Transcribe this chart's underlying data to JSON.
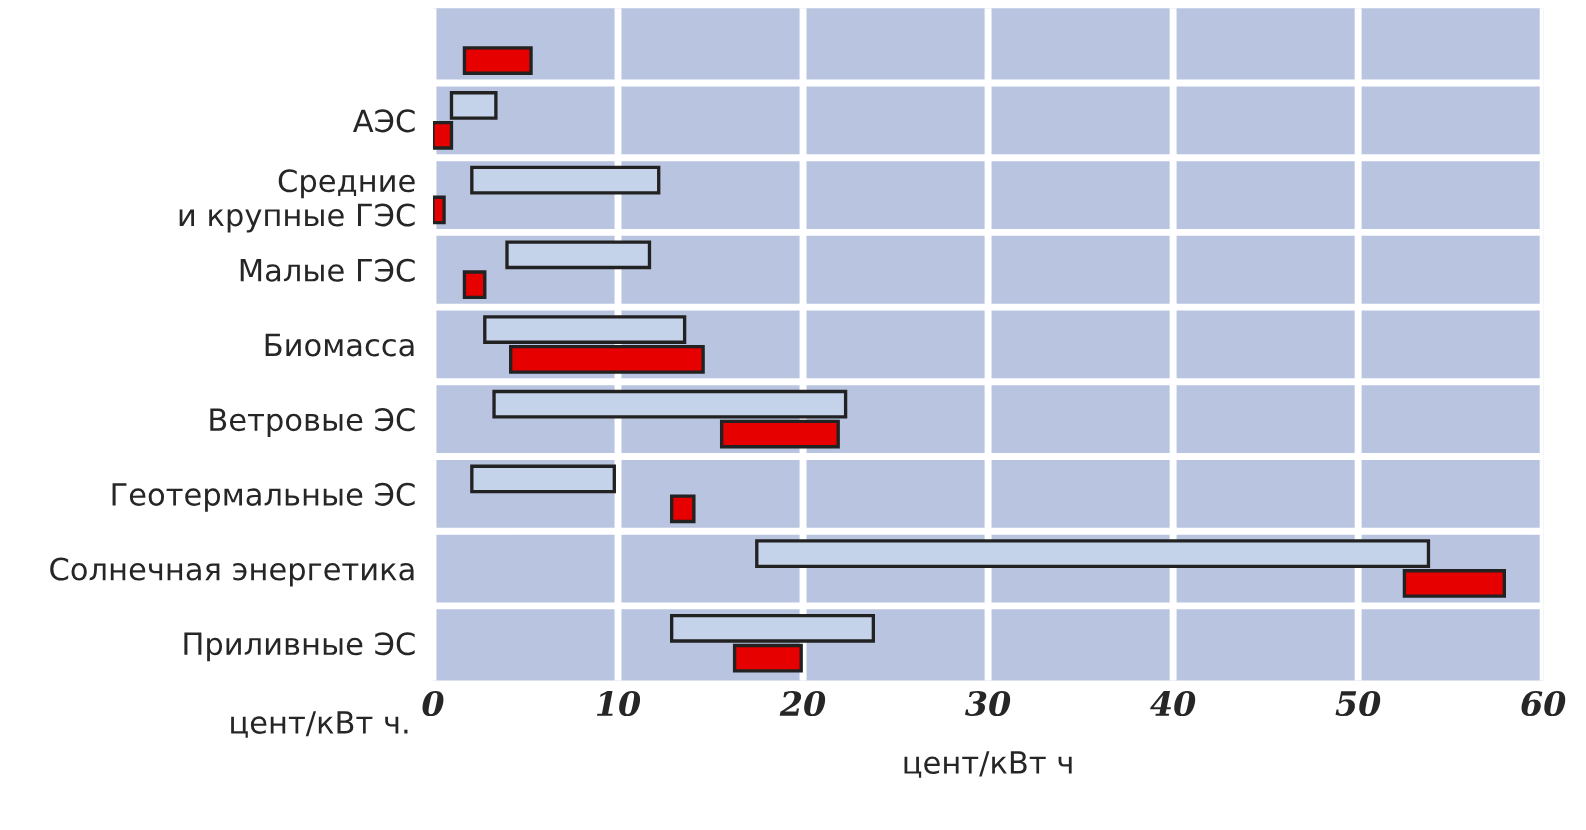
{
  "chart_data": {
    "type": "bar",
    "orientation": "horizontal",
    "xlabel": "цент/кВт ч",
    "categories": [
      null,
      "АЭС",
      "Средние\nи крупные ГЭС",
      "Малые ГЭС",
      "Биомасса",
      "Ветровые ЭС",
      "Геотермальные ЭС",
      "Солнечная энергетика",
      "Приливные ЭС"
    ],
    "series": [
      {
        "color": "#c5d3ea",
        "base": [
          null,
          1.0,
          2.1,
          4.0,
          2.8,
          3.3,
          2.1,
          17.5,
          12.9
        ],
        "values": [
          null,
          2.4,
          10.1,
          7.7,
          10.8,
          19.0,
          7.7,
          36.3,
          10.9
        ]
      },
      {
        "color": "#e60000",
        "base": [
          1.7,
          0,
          0,
          1.7,
          4.2,
          15.6,
          12.9,
          52.5,
          16.3
        ],
        "values": [
          3.6,
          1.0,
          0.6,
          1.1,
          10.4,
          6.3,
          1.2,
          5.4,
          3.6
        ]
      }
    ],
    "xlim": [
      0,
      60
    ],
    "xticks": [
      0,
      10,
      20,
      30,
      40,
      50,
      60
    ],
    "grid": true,
    "annotations": [
      "цент/кВт ч."
    ]
  }
}
